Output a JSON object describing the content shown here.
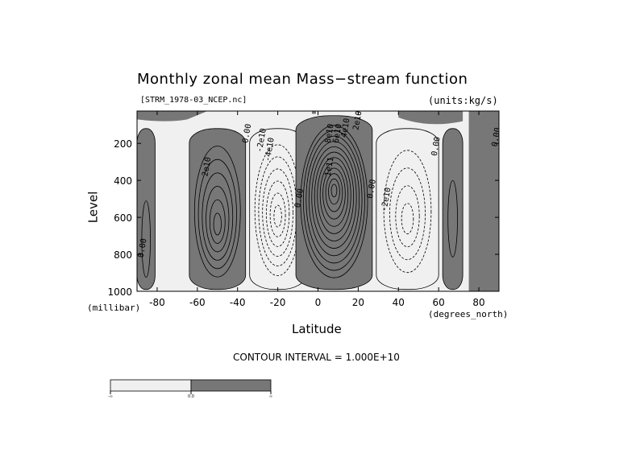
{
  "chart_data": {
    "type": "heatmap",
    "subtype": "shaded contour plot",
    "title": "Monthly zonal mean Mass−stream function",
    "file_label": "[STRM_1978-03_NCEP.nc]",
    "units_label": "(units:kg/s)",
    "xlabel": "Latitude",
    "x_unit_label": "(degrees_north)",
    "ylabel": "Level",
    "y_unit_label": "(millibar)",
    "xlim": [
      -90,
      90
    ],
    "ylim": [
      1000,
      25
    ],
    "y_inverted": true,
    "x_ticks": [
      -80,
      -60,
      -40,
      -20,
      0,
      20,
      40,
      60,
      80
    ],
    "y_ticks": [
      200,
      400,
      600,
      800,
      1000
    ],
    "contour_interval_text": "CONTOUR INTERVAL = 1.000E+10",
    "contour_interval": 10000000000,
    "shading": {
      "negative_color": "#f0f0f0",
      "positive_color": "#777777",
      "colorbar_labels": [
        "-∞",
        "0.0",
        "∞"
      ]
    },
    "cells": [
      {
        "sign": "positive",
        "lat_range": [
          -64,
          -36
        ],
        "p_center": 650,
        "max_magnitude": 60000000000.0,
        "levels": 6
      },
      {
        "sign": "negative",
        "lat_range": [
          -34,
          -6
        ],
        "p_center": 600,
        "max_magnitude": 60000000000.0,
        "levels": 6
      },
      {
        "sign": "positive",
        "lat_range": [
          -11,
          27
        ],
        "p_center": 450,
        "max_magnitude": 120000000000.0,
        "levels": 12
      },
      {
        "sign": "negative",
        "lat_range": [
          29,
          60
        ],
        "p_center": 620,
        "max_magnitude": 40000000000.0,
        "levels": 4
      },
      {
        "sign": "positive",
        "lat_range": [
          62,
          72
        ],
        "p_center": 660,
        "max_magnitude": 10000000000.0,
        "levels": 1
      },
      {
        "sign": "positive",
        "lat_range": [
          -90,
          -81
        ],
        "p_center": 880,
        "max_magnitude": 10000000000.0,
        "levels": 1
      }
    ],
    "contour_labels": [
      {
        "text": "0.00",
        "lat": -87,
        "p": 820
      },
      {
        "text": "2e10",
        "lat": -55,
        "p": 380
      },
      {
        "text": "0.00",
        "lat": -35,
        "p": 200
      },
      {
        "text": "-2e10",
        "lat": -28,
        "p": 250
      },
      {
        "text": "-4e10",
        "lat": -24,
        "p": 300
      },
      {
        "text": "0.00",
        "lat": -9,
        "p": 550
      },
      {
        "text": "1e11",
        "lat": 6,
        "p": 380
      },
      {
        "text": "8e10",
        "lat": 6,
        "p": 200
      },
      {
        "text": "6e10",
        "lat": 10,
        "p": 200
      },
      {
        "text": "4e10",
        "lat": 14,
        "p": 170
      },
      {
        "text": "2e10",
        "lat": 20,
        "p": 130
      },
      {
        "text": "0.00",
        "lat": 27,
        "p": 500
      },
      {
        "text": "-2e10",
        "lat": 34,
        "p": 570
      },
      {
        "text": "0.00",
        "lat": 59,
        "p": 270
      },
      {
        "text": "0.00",
        "lat": 89,
        "p": 220
      }
    ]
  }
}
